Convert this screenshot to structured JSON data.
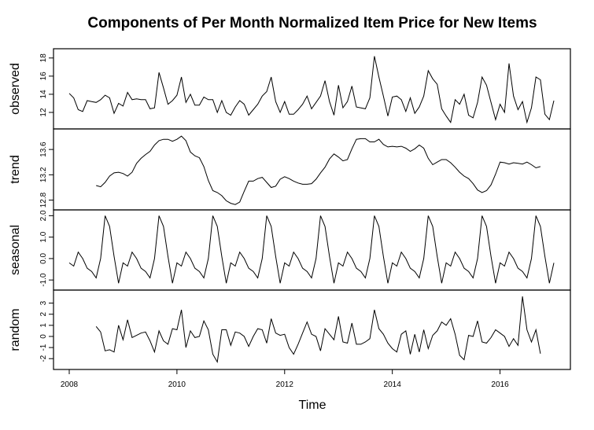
{
  "chart_data": {
    "type": "line",
    "title": "Components of Per Month Normalized Item Price for New Items",
    "xlabel": "Time",
    "x_range": [
      2008.0,
      2017.0
    ],
    "x_ticks": [
      "2008",
      "2010",
      "2012",
      "2014",
      "2016"
    ],
    "grid": false,
    "panels": [
      {
        "name": "observed",
        "ylabel": "observed",
        "ylim": [
          10.7,
          18.5
        ],
        "y_ticks": [
          "12",
          "14",
          "16",
          "18"
        ],
        "start": 2008.0,
        "values": [
          14.1,
          13.6,
          12.3,
          12.1,
          13.3,
          13.2,
          13.1,
          13.4,
          13.9,
          13.6,
          11.9,
          13.0,
          12.7,
          14.2,
          13.4,
          13.5,
          13.4,
          13.4,
          12.4,
          12.5,
          16.4,
          14.7,
          12.9,
          13.3,
          13.9,
          15.9,
          13.1,
          14.0,
          12.8,
          12.8,
          13.7,
          13.4,
          13.4,
          12.0,
          13.3,
          12.0,
          11.7,
          12.6,
          13.3,
          12.9,
          11.7,
          12.3,
          12.9,
          13.8,
          14.3,
          15.9,
          13.2,
          12.0,
          13.2,
          11.8,
          11.8,
          12.3,
          12.9,
          13.8,
          12.4,
          13.1,
          13.8,
          15.5,
          13.2,
          11.7,
          15.0,
          12.5,
          13.2,
          14.9,
          12.6,
          12.5,
          12.4,
          13.6,
          18.2,
          15.9,
          13.8,
          11.6,
          13.7,
          13.8,
          13.4,
          12.1,
          13.6,
          11.9,
          12.6,
          13.8,
          16.6,
          15.7,
          15.1,
          12.4,
          11.6,
          10.9,
          13.4,
          12.9,
          14.0,
          11.7,
          11.4,
          13.1,
          15.9,
          15.0,
          13.1,
          11.2,
          12.9,
          12.0,
          17.4,
          13.8,
          12.3,
          13.2,
          10.9,
          12.5,
          15.9,
          15.6,
          11.8,
          11.2,
          13.3
        ]
      },
      {
        "name": "trend",
        "ylabel": "trend",
        "ylim": [
          12.72,
          13.85
        ],
        "y_ticks": [
          "12.8",
          "13.2",
          "13.6"
        ],
        "start": 2008.5,
        "values": [
          13.03,
          13.01,
          13.08,
          13.18,
          13.23,
          13.24,
          13.22,
          13.18,
          13.24,
          13.38,
          13.46,
          13.52,
          13.57,
          13.67,
          13.74,
          13.76,
          13.76,
          13.73,
          13.76,
          13.81,
          13.74,
          13.56,
          13.5,
          13.47,
          13.33,
          13.11,
          12.95,
          12.92,
          12.87,
          12.79,
          12.75,
          12.73,
          12.77,
          12.94,
          13.1,
          13.1,
          13.14,
          13.16,
          13.08,
          13.0,
          13.02,
          13.13,
          13.17,
          13.14,
          13.1,
          13.07,
          13.05,
          13.05,
          13.06,
          13.13,
          13.23,
          13.32,
          13.45,
          13.53,
          13.48,
          13.42,
          13.44,
          13.61,
          13.76,
          13.77,
          13.77,
          13.72,
          13.72,
          13.76,
          13.68,
          13.64,
          13.65,
          13.64,
          13.65,
          13.62,
          13.57,
          13.61,
          13.67,
          13.62,
          13.46,
          13.36,
          13.4,
          13.44,
          13.44,
          13.39,
          13.32,
          13.24,
          13.18,
          13.14,
          13.06,
          12.96,
          12.92,
          12.95,
          13.04,
          13.21,
          13.4,
          13.39,
          13.37,
          13.39,
          13.38,
          13.37,
          13.4,
          13.36,
          13.31,
          13.33
        ]
      },
      {
        "name": "seasonal",
        "ylabel": "seasonal",
        "ylim": [
          -1.25,
          2.05
        ],
        "y_ticks": [
          "-1.0",
          "0.0",
          "1.0",
          "2.0"
        ],
        "start": 2008.0,
        "period": 12,
        "values": [
          -0.2,
          -0.35,
          0.3,
          0.0,
          -0.45,
          -0.6,
          -0.9,
          0.0,
          2.0,
          1.5,
          0.1,
          -1.15
        ],
        "n_points": 109
      },
      {
        "name": "random",
        "ylabel": "random",
        "ylim": [
          -2.55,
          3.75
        ],
        "y_ticks": [
          "-2",
          "-1",
          "0",
          "1",
          "2",
          "3"
        ],
        "start": 2008.5,
        "values": [
          0.9,
          0.4,
          -1.3,
          -1.2,
          -1.4,
          1.0,
          -0.3,
          1.5,
          -0.1,
          0.1,
          0.3,
          0.4,
          -0.4,
          -1.4,
          0.5,
          -0.4,
          -0.7,
          0.7,
          0.6,
          2.4,
          -1.0,
          0.5,
          -0.1,
          0.0,
          1.4,
          0.6,
          -1.6,
          -2.3,
          0.6,
          0.6,
          -0.8,
          0.4,
          0.3,
          0.0,
          -0.9,
          0.0,
          0.7,
          0.6,
          -0.6,
          1.6,
          0.3,
          0.1,
          0.2,
          -1.0,
          -1.6,
          -0.7,
          0.3,
          1.3,
          0.2,
          0.0,
          -1.3,
          0.7,
          0.2,
          -0.3,
          1.8,
          -0.5,
          -0.6,
          1.2,
          -0.7,
          -0.7,
          -0.5,
          -0.2,
          2.4,
          0.7,
          0.2,
          -0.6,
          -1.1,
          -1.4,
          0.2,
          0.5,
          -1.6,
          0.2,
          -1.4,
          0.6,
          -1.1,
          0.1,
          0.5,
          1.3,
          1.0,
          1.6,
          0.2,
          -1.7,
          -2.1,
          0.1,
          0.0,
          1.4,
          -0.5,
          -0.6,
          -0.1,
          0.6,
          0.3,
          0.0,
          -0.9,
          -0.2,
          -0.8,
          3.6,
          0.6,
          -0.5,
          0.6,
          -1.55
        ]
      }
    ]
  }
}
